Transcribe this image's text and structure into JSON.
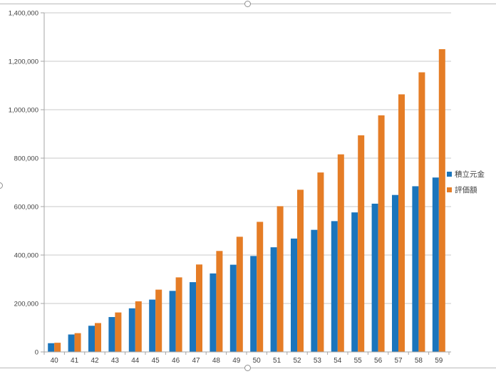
{
  "colors": {
    "series_blue": "#1b75bc",
    "series_orange": "#e57d26",
    "gridline": "#c9c9c9",
    "axis": "#a6a6a6",
    "tick_text": "#3f3f3f",
    "chart_border": "#b9b9b9"
  },
  "legend": {
    "entries": [
      {
        "label": "積立元金",
        "color": "#1b75bc"
      },
      {
        "label": "評価額",
        "color": "#e57d26"
      }
    ]
  },
  "chart_data": {
    "type": "bar",
    "title": "",
    "xlabel": "",
    "ylabel": "",
    "categories": [
      "40",
      "41",
      "42",
      "43",
      "44",
      "45",
      "46",
      "47",
      "48",
      "49",
      "50",
      "51",
      "52",
      "53",
      "54",
      "55",
      "56",
      "57",
      "58",
      "59"
    ],
    "series": [
      {
        "name": "積立元金",
        "color": "#1b75bc",
        "values": [
          36000,
          72000,
          108000,
          144000,
          180000,
          216000,
          252000,
          288000,
          324000,
          360000,
          396000,
          432000,
          468000,
          504000,
          540000,
          576000,
          612000,
          648000,
          684000,
          720000
        ]
      },
      {
        "name": "評価額",
        "color": "#e57d26",
        "values": [
          37800,
          77490,
          119165,
          162923,
          208869,
          257112,
          307768,
          360956,
          416804,
          475444,
          537017,
          601667,
          669551,
          740828,
          815670,
          894253,
          976766,
          1063404,
          1154374,
          1249893
        ]
      }
    ],
    "ylim": [
      0,
      1400000
    ],
    "ytick_step": 200000,
    "ytick_labels": [
      "0",
      "200,000",
      "400,000",
      "600,000",
      "800,000",
      "1,000,000",
      "1,200,000",
      "1,400,000"
    ],
    "grid": true,
    "legend_position": "right"
  }
}
